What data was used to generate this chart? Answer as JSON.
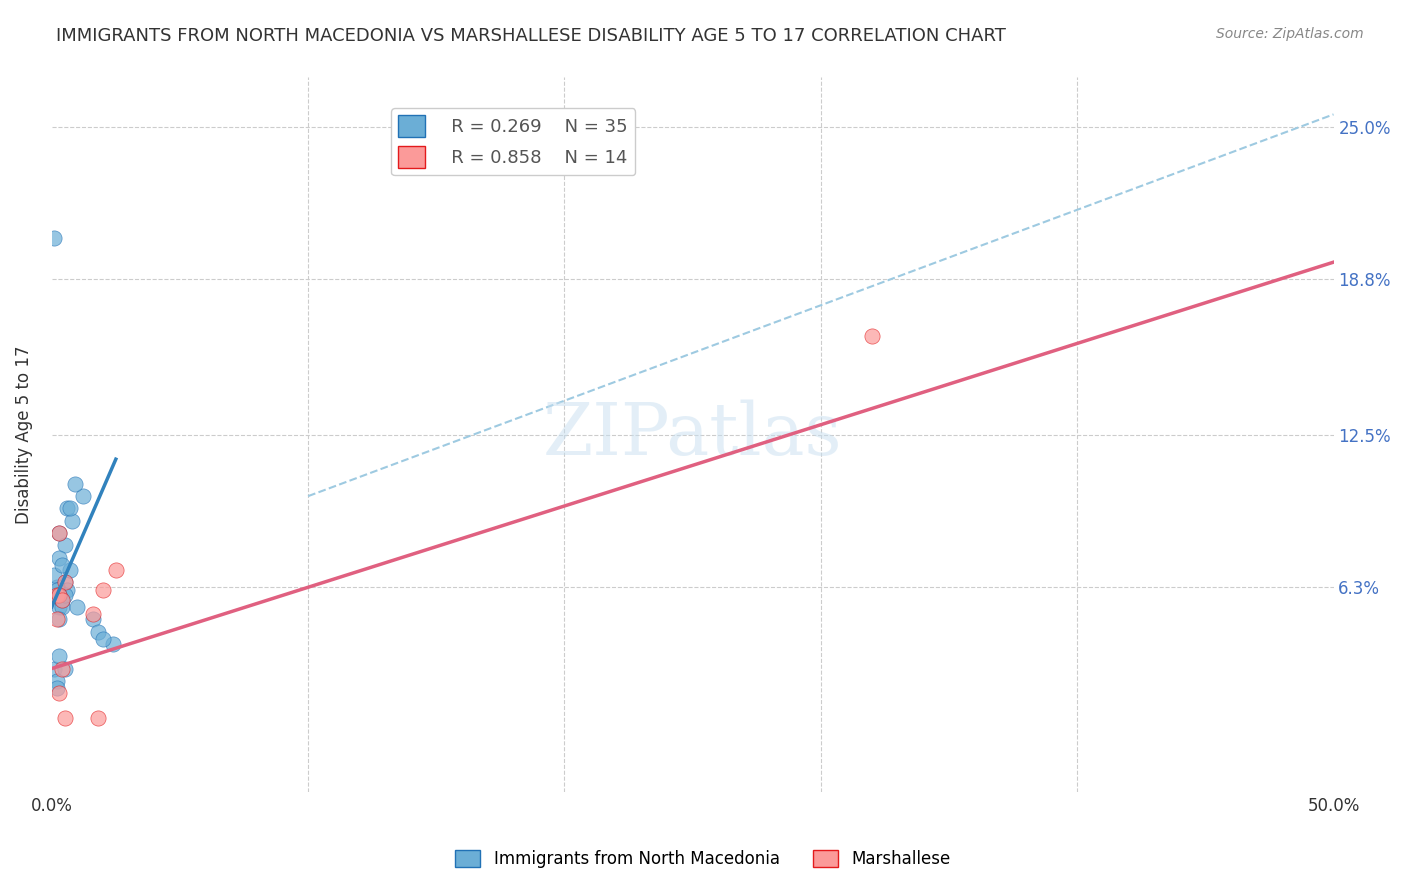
{
  "title": "IMMIGRANTS FROM NORTH MACEDONIA VS MARSHALLESE DISABILITY AGE 5 TO 17 CORRELATION CHART",
  "source": "Source: ZipAtlas.com",
  "xlabel": "",
  "ylabel": "Disability Age 5 to 17",
  "xlim": [
    0.0,
    0.5
  ],
  "ylim": [
    -0.02,
    0.27
  ],
  "xticks": [
    0.0,
    0.1,
    0.2,
    0.3,
    0.4,
    0.5
  ],
  "xticklabels": [
    "0.0%",
    "",
    "",
    "",
    "",
    "50.0%"
  ],
  "ytick_values": [
    0.063,
    0.125,
    0.188,
    0.25
  ],
  "ytick_labels": [
    "6.3%",
    "12.5%",
    "18.8%",
    "25.0%"
  ],
  "legend_r1": "R = 0.269",
  "legend_n1": "N = 35",
  "legend_r2": "R = 0.858",
  "legend_n2": "N = 14",
  "color_blue": "#6baed6",
  "color_pink": "#fb9a99",
  "color_blue_dark": "#2171b5",
  "color_pink_dark": "#e31a1c",
  "color_blue_line": "#3182bd",
  "color_pink_line": "#e06080",
  "color_dashed": "#9ecae1",
  "watermark": "ZIPatlas",
  "blue_scatter_x": [
    0.003,
    0.005,
    0.004,
    0.006,
    0.003,
    0.002,
    0.004,
    0.007,
    0.005,
    0.003,
    0.002,
    0.003,
    0.001,
    0.008,
    0.006,
    0.004,
    0.003,
    0.012,
    0.009,
    0.007,
    0.005,
    0.016,
    0.018,
    0.024,
    0.02,
    0.002,
    0.003,
    0.004,
    0.001,
    0.002,
    0.003,
    0.005,
    0.002,
    0.001,
    0.01
  ],
  "blue_scatter_y": [
    0.06,
    0.065,
    0.058,
    0.062,
    0.055,
    0.063,
    0.058,
    0.07,
    0.08,
    0.085,
    0.06,
    0.075,
    0.068,
    0.09,
    0.095,
    0.055,
    0.05,
    0.1,
    0.105,
    0.095,
    0.06,
    0.05,
    0.045,
    0.04,
    0.042,
    0.062,
    0.06,
    0.072,
    0.03,
    0.025,
    0.035,
    0.03,
    0.022,
    0.205,
    0.055
  ],
  "pink_scatter_x": [
    0.003,
    0.004,
    0.002,
    0.005,
    0.016,
    0.02,
    0.003,
    0.004,
    0.002,
    0.018,
    0.005,
    0.025,
    0.32,
    0.003
  ],
  "pink_scatter_y": [
    0.02,
    0.03,
    0.06,
    0.065,
    0.052,
    0.062,
    0.06,
    0.058,
    0.05,
    0.01,
    0.01,
    0.07,
    0.165,
    0.085
  ],
  "blue_line_x": [
    0.0,
    0.025
  ],
  "blue_line_y": [
    0.055,
    0.115
  ],
  "pink_line_x": [
    0.0,
    0.5
  ],
  "pink_line_y": [
    0.03,
    0.195
  ],
  "dashed_line_x": [
    0.1,
    0.5
  ],
  "dashed_line_y": [
    0.1,
    0.255
  ],
  "background_color": "#ffffff",
  "grid_color": "#cccccc"
}
